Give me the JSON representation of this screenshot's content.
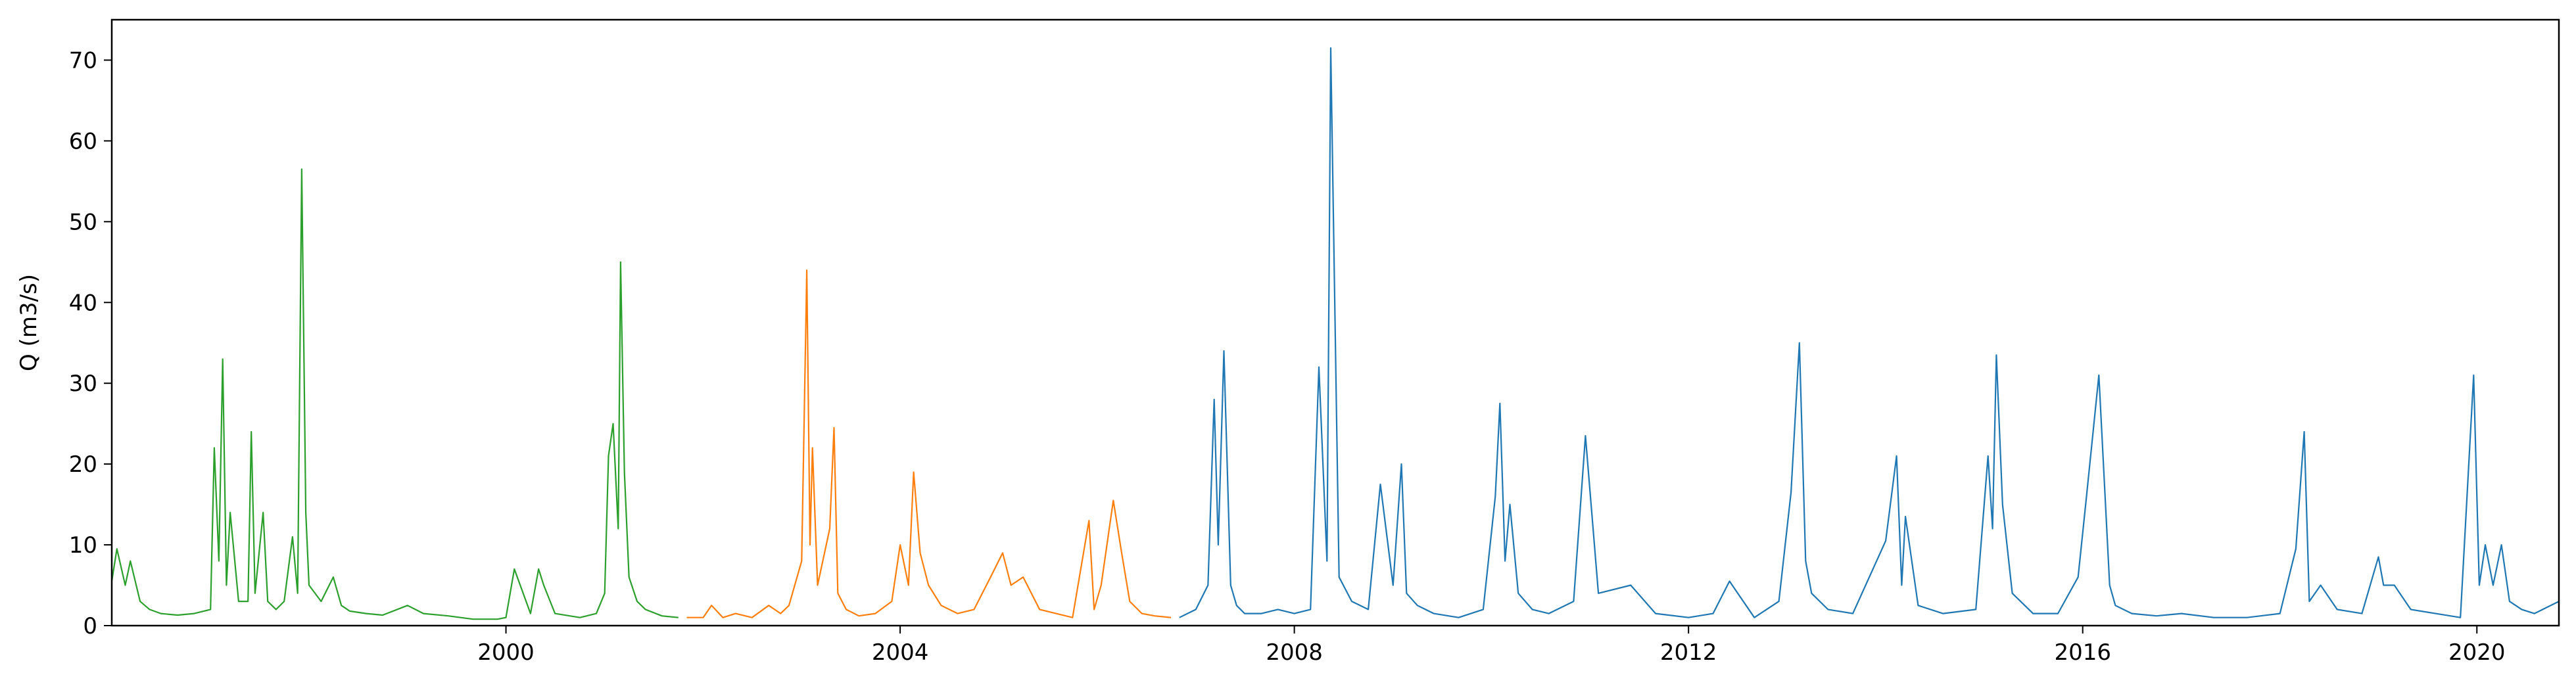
{
  "chart_data": {
    "type": "line",
    "title": "",
    "xlabel": "",
    "ylabel": "Q (m3/s)",
    "xlim": [
      "1996-01-01",
      "2020-10-31"
    ],
    "ylim": [
      0,
      75
    ],
    "x_ticks": [
      {
        "value": "2000-01-01",
        "label": "2000"
      },
      {
        "value": "2004-01-01",
        "label": "2004"
      },
      {
        "value": "2008-01-01",
        "label": "2008"
      },
      {
        "value": "2012-01-01",
        "label": "2012"
      },
      {
        "value": "2016-01-01",
        "label": "2016"
      },
      {
        "value": "2020-01-01",
        "label": "2020"
      }
    ],
    "y_ticks": [
      {
        "value": 0,
        "label": "0"
      },
      {
        "value": 10,
        "label": "10"
      },
      {
        "value": 20,
        "label": "20"
      },
      {
        "value": 30,
        "label": "30"
      },
      {
        "value": 40,
        "label": "40"
      },
      {
        "value": 50,
        "label": "50"
      },
      {
        "value": 60,
        "label": "60"
      },
      {
        "value": 70,
        "label": "70"
      }
    ],
    "grid": false,
    "legend": "none",
    "series": [
      {
        "color": "#2ca02c",
        "x": [
          "1996-01-01",
          "1996-01-20",
          "1996-02-20",
          "1996-03-10",
          "1996-04-15",
          "1996-05-20",
          "1996-07-01",
          "1996-09-01",
          "1996-11-01",
          "1997-01-01",
          "1997-01-15",
          "1997-02-01",
          "1997-02-15",
          "1997-03-01",
          "1997-03-15",
          "1997-04-15",
          "1997-05-20",
          "1997-06-01",
          "1997-06-15",
          "1997-07-15",
          "1997-08-01",
          "1997-09-01",
          "1997-10-01",
          "1997-11-01",
          "1997-11-20",
          "1997-12-05",
          "1997-12-20",
          "1998-01-01",
          "1998-02-15",
          "1998-04-01",
          "1998-05-01",
          "1998-06-01",
          "1998-08-01",
          "1998-10-01",
          "1999-01-01",
          "1999-03-01",
          "1999-06-01",
          "1999-09-01",
          "1999-12-01",
          "2000-01-01",
          "2000-02-01",
          "2000-04-01",
          "2000-05-01",
          "2000-05-20",
          "2000-07-01",
          "2000-10-01",
          "2000-12-01",
          "2001-01-01",
          "2001-01-15",
          "2001-02-01",
          "2001-02-20",
          "2001-03-01",
          "2001-03-15",
          "2001-04-01",
          "2001-05-01",
          "2001-06-01",
          "2001-08-01",
          "2001-10-01"
        ],
        "y": [
          5.5,
          9.5,
          5.0,
          8.0,
          3.0,
          2.0,
          1.5,
          1.3,
          1.5,
          2.0,
          22.0,
          8.0,
          33.0,
          5.0,
          14.0,
          3.0,
          3.0,
          24.0,
          4.0,
          14.0,
          3.0,
          2.0,
          3.0,
          11.0,
          4.0,
          56.5,
          14.0,
          5.0,
          3.0,
          6.0,
          2.5,
          1.8,
          1.5,
          1.3,
          2.5,
          1.5,
          1.2,
          0.8,
          0.8,
          1.0,
          7.0,
          1.5,
          7.0,
          5.0,
          1.5,
          1.0,
          1.5,
          4.0,
          21.0,
          25.0,
          12.0,
          45.0,
          19.0,
          6.0,
          3.0,
          2.0,
          1.2,
          1.0
        ]
      },
      {
        "color": "#ff7f0e",
        "x": [
          "2001-11-01",
          "2002-01-01",
          "2002-02-01",
          "2002-03-15",
          "2002-05-01",
          "2002-07-01",
          "2002-09-01",
          "2002-10-15",
          "2002-11-15",
          "2002-12-15",
          "2003-01-01",
          "2003-01-20",
          "2003-02-01",
          "2003-02-10",
          "2003-03-01",
          "2003-04-15",
          "2003-05-01",
          "2003-05-15",
          "2003-06-15",
          "2003-08-01",
          "2003-10-01",
          "2003-12-01",
          "2004-01-01",
          "2004-02-01",
          "2004-02-20",
          "2004-03-15",
          "2004-04-15",
          "2004-06-01",
          "2004-08-01",
          "2004-10-01",
          "2004-12-01",
          "2005-01-15",
          "2005-02-15",
          "2005-04-01",
          "2005-06-01",
          "2005-08-01",
          "2005-10-01",
          "2005-12-01",
          "2005-12-20",
          "2006-01-15",
          "2006-03-01",
          "2006-04-01",
          "2006-05-01",
          "2006-06-15",
          "2006-08-01",
          "2006-10-01"
        ],
        "y": [
          1.0,
          1.0,
          2.5,
          1.0,
          1.5,
          1.0,
          2.5,
          1.5,
          2.5,
          6.0,
          8.0,
          44.0,
          10.0,
          22.0,
          5.0,
          12.0,
          24.5,
          4.0,
          2.0,
          1.2,
          1.5,
          3.0,
          10.0,
          5.0,
          19.0,
          9.0,
          5.0,
          2.5,
          1.5,
          2.0,
          6.0,
          9.0,
          5.0,
          6.0,
          2.0,
          1.5,
          1.0,
          13.0,
          2.0,
          5.0,
          15.5,
          9.0,
          3.0,
          1.5,
          1.2,
          1.0
        ]
      },
      {
        "color": "#1f77b4",
        "x": [
          "2006-11-01",
          "2007-01-01",
          "2007-02-15",
          "2007-03-10",
          "2007-03-25",
          "2007-04-15",
          "2007-05-10",
          "2007-06-01",
          "2007-07-01",
          "2007-09-01",
          "2007-11-01",
          "2008-01-01",
          "2008-03-01",
          "2008-04-01",
          "2008-05-01",
          "2008-05-15",
          "2008-06-15",
          "2008-08-01",
          "2008-10-01",
          "2008-11-15",
          "2009-01-01",
          "2009-02-01",
          "2009-02-20",
          "2009-04-01",
          "2009-06-01",
          "2009-09-01",
          "2009-12-01",
          "2010-01-15",
          "2010-02-01",
          "2010-02-20",
          "2010-03-10",
          "2010-04-10",
          "2010-06-01",
          "2010-08-01",
          "2010-11-01",
          "2010-12-15",
          "2011-02-01",
          "2011-06-01",
          "2011-09-01",
          "2012-01-01",
          "2012-04-01",
          "2012-06-01",
          "2012-09-01",
          "2012-12-01",
          "2013-01-15",
          "2013-02-15",
          "2013-03-10",
          "2013-04-01",
          "2013-06-01",
          "2013-09-01",
          "2014-01-01",
          "2014-02-10",
          "2014-03-01",
          "2014-03-15",
          "2014-05-01",
          "2014-08-01",
          "2014-12-01",
          "2015-01-15",
          "2015-02-01",
          "2015-02-15",
          "2015-03-10",
          "2015-04-15",
          "2015-07-01",
          "2015-10-01",
          "2015-12-15",
          "2016-01-15",
          "2016-03-01",
          "2016-04-10",
          "2016-05-01",
          "2016-07-01",
          "2016-10-01",
          "2017-01-01",
          "2017-05-01",
          "2017-09-01",
          "2018-01-01",
          "2018-03-01",
          "2018-04-01",
          "2018-04-20",
          "2018-06-01",
          "2018-08-01",
          "2018-11-01",
          "2019-01-01",
          "2019-01-20",
          "2019-03-01",
          "2019-05-01",
          "2019-08-01",
          "2019-11-01",
          "2019-12-20",
          "2020-01-10",
          "2020-02-01",
          "2020-03-01",
          "2020-04-01",
          "2020-05-01",
          "2020-06-15",
          "2020-08-01",
          "2020-10-31"
        ],
        "y": [
          1.0,
          2.0,
          5.0,
          28.0,
          10.0,
          34.0,
          5.0,
          2.5,
          1.5,
          1.5,
          2.0,
          1.5,
          2.0,
          32.0,
          8.0,
          71.5,
          6.0,
          3.0,
          2.0,
          17.5,
          5.0,
          20.0,
          4.0,
          2.5,
          1.5,
          1.0,
          2.0,
          16.0,
          27.5,
          8.0,
          15.0,
          4.0,
          2.0,
          1.5,
          3.0,
          23.5,
          4.0,
          5.0,
          1.5,
          1.0,
          1.5,
          5.5,
          1.0,
          3.0,
          16.5,
          35.0,
          8.0,
          4.0,
          2.0,
          1.5,
          10.5,
          21.0,
          5.0,
          13.5,
          2.5,
          1.5,
          2.0,
          21.0,
          12.0,
          33.5,
          15.0,
          4.0,
          1.5,
          1.5,
          6.0,
          16.0,
          31.0,
          5.0,
          2.5,
          1.5,
          1.2,
          1.5,
          1.0,
          1.0,
          1.5,
          9.5,
          24.0,
          3.0,
          5.0,
          2.0,
          1.5,
          8.5,
          5.0,
          5.0,
          2.0,
          1.5,
          1.0,
          31.0,
          5.0,
          10.0,
          5.0,
          10.0,
          3.0,
          2.0,
          1.5,
          3.0
        ]
      }
    ]
  }
}
